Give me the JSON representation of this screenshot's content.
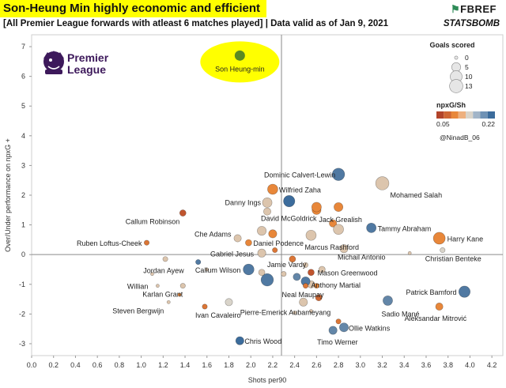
{
  "header": {
    "title": "Son-Heung Min highly economic and efficient",
    "subtitle": "[All Premier League forwards with atleast 6 matches played] | Data valid as of Jan 9, 2021",
    "fbref_prefix": "FB",
    "fbref_suffix": "REF",
    "statsbomb": "STATSBOMB"
  },
  "logo": {
    "line1": "Premier",
    "line2": "League"
  },
  "colors": {
    "highlight": "#ffff00",
    "son_point": "#5a8a23",
    "low": "#b2442a",
    "mid": "#e8873a",
    "neutral": "#d9d4ca",
    "high": "#3c6c9c"
  },
  "legend": {
    "size_title": "Goals scored",
    "size_values": [
      "0",
      "5",
      "10",
      "13"
    ],
    "color_title": "npxG/Sh",
    "color_min": "0.05",
    "color_max": "0.22",
    "credit": "@NinadB_06"
  },
  "chart_data": {
    "type": "scatter",
    "xlabel": "Shots per90",
    "ylabel": "Over/Under performance on npxG +",
    "xlim": [
      0.0,
      4.3
    ],
    "ylim": [
      -3.4,
      7.4
    ],
    "xticks": [
      "0.0",
      "0.2",
      "0.4",
      "0.6",
      "0.8",
      "1.0",
      "1.2",
      "1.4",
      "1.6",
      "1.8",
      "2.0",
      "2.2",
      "2.4",
      "2.6",
      "2.8",
      "3.0",
      "3.2",
      "3.4",
      "3.6",
      "3.8",
      "4.0",
      "4.2"
    ],
    "yticks": [
      "-3",
      "-2",
      "-1",
      "0",
      "1",
      "2",
      "3",
      "4",
      "5",
      "6",
      "7"
    ],
    "reference_lines": {
      "x": 2.28,
      "y": 0
    },
    "highlight_label": "Son Heung-min",
    "points": [
      {
        "name": "Son Heung-min",
        "x": 1.9,
        "y": 6.7,
        "goals": 12,
        "npxg_sh": "highlight",
        "label": true
      },
      {
        "name": "Dominic Calvert-Lewin",
        "x": 2.8,
        "y": 2.7,
        "goals": 11,
        "npxg_sh": 0.21,
        "label": true
      },
      {
        "name": "Mohamed Salah",
        "x": 3.2,
        "y": 2.4,
        "goals": 13,
        "npxg_sh": 0.13,
        "label": true
      },
      {
        "name": "Wilfried Zaha",
        "x": 2.2,
        "y": 2.2,
        "goals": 7,
        "npxg_sh": 0.09,
        "label": true
      },
      {
        "name": "Danny Ings",
        "x": 2.15,
        "y": 1.75,
        "goals": 6,
        "npxg_sh": 0.13,
        "label": true
      },
      {
        "name": "David McGoldrick",
        "x": 2.15,
        "y": 1.45,
        "goals": 3,
        "npxg_sh": 0.13,
        "label": true
      },
      {
        "name": "Jack Grealish",
        "x": 2.6,
        "y": 1.5,
        "goals": 5,
        "npxg_sh": 0.09,
        "label": true
      },
      {
        "name": "Tammy Abraham",
        "x": 3.1,
        "y": 0.9,
        "goals": 6,
        "npxg_sh": 0.21,
        "label": true
      },
      {
        "name": "Callum Robinson",
        "x": 1.38,
        "y": 1.4,
        "goals": 2,
        "npxg_sh": 0.06,
        "label": true
      },
      {
        "name": "Harry Kane",
        "x": 3.72,
        "y": 0.55,
        "goals": 10,
        "npxg_sh": 0.09,
        "label": true
      },
      {
        "name": "Che Adams",
        "x": 1.88,
        "y": 0.55,
        "goals": 3,
        "npxg_sh": 0.13,
        "label": true
      },
      {
        "name": "Daniel Podence",
        "x": 1.98,
        "y": 0.4,
        "goals": 2,
        "npxg_sh": 0.09,
        "label": true
      },
      {
        "name": "Marcus Rashford",
        "x": 2.55,
        "y": 0.65,
        "goals": 7,
        "npxg_sh": 0.13,
        "label": true
      },
      {
        "name": "Ruben Loftus-Cheek",
        "x": 1.05,
        "y": 0.4,
        "goals": 1,
        "npxg_sh": 0.08,
        "label": true
      },
      {
        "name": "Gabriel Jesus",
        "x": 2.1,
        "y": 0.05,
        "goals": 4,
        "npxg_sh": 0.13,
        "label": true
      },
      {
        "name": "Michail Antonio",
        "x": 2.85,
        "y": 0.2,
        "goals": 4,
        "npxg_sh": 0.13,
        "label": true
      },
      {
        "name": "Christian Benteke",
        "x": 3.75,
        "y": 0.15,
        "goals": 1,
        "npxg_sh": 0.14,
        "label": true
      },
      {
        "name": "Jordan Ayew",
        "x": 1.52,
        "y": -0.25,
        "goals": 1,
        "npxg_sh": 0.21,
        "label": true
      },
      {
        "name": "Jamie Vardy",
        "x": 2.15,
        "y": -0.85,
        "goals": 11,
        "npxg_sh": 0.21,
        "label": true
      },
      {
        "name": "Callum Wilson",
        "x": 1.98,
        "y": -0.5,
        "goals": 8,
        "npxg_sh": 0.21,
        "label": true
      },
      {
        "name": "Mason Greenwood",
        "x": 2.55,
        "y": -0.6,
        "goals": 2,
        "npxg_sh": 0.06,
        "label": true
      },
      {
        "name": "Anthony Martial",
        "x": 2.55,
        "y": -1.0,
        "goals": 3,
        "npxg_sh": 0.13,
        "label": true
      },
      {
        "name": "Willian",
        "x": 1.15,
        "y": -1.05,
        "goals": 0,
        "npxg_sh": 0.13,
        "label": true
      },
      {
        "name": "Karlan Grant",
        "x": 1.38,
        "y": -1.05,
        "goals": 1,
        "npxg_sh": 0.13,
        "label": true
      },
      {
        "name": "Patrick Bamford",
        "x": 3.95,
        "y": -1.25,
        "goals": 9,
        "npxg_sh": 0.21,
        "label": true
      },
      {
        "name": "Neal Maupay",
        "x": 2.5,
        "y": -0.9,
        "goals": 5,
        "npxg_sh": 0.21,
        "label": true
      },
      {
        "name": "Steven Bergwijn",
        "x": 1.25,
        "y": -1.6,
        "goals": 0,
        "npxg_sh": 0.13,
        "label": true
      },
      {
        "name": "Sadio Mané",
        "x": 3.25,
        "y": -1.55,
        "goals": 6,
        "npxg_sh": 0.2,
        "label": true
      },
      {
        "name": "Aleksandar Mitrović",
        "x": 3.72,
        "y": -1.75,
        "goals": 3,
        "npxg_sh": 0.09,
        "label": true
      },
      {
        "name": "Ivan Cavaleiro",
        "x": 1.58,
        "y": -1.75,
        "goals": 1,
        "npxg_sh": 0.08,
        "label": true
      },
      {
        "name": "Pierre-Emerick Aubameyang",
        "x": 2.48,
        "y": -1.6,
        "goals": 4,
        "npxg_sh": 0.13,
        "label": true
      },
      {
        "name": "Ollie Watkins",
        "x": 2.85,
        "y": -2.45,
        "goals": 5,
        "npxg_sh": 0.2,
        "label": true
      },
      {
        "name": "Chris Wood",
        "x": 1.9,
        "y": -2.9,
        "goals": 4,
        "npxg_sh": 0.22,
        "label": true
      },
      {
        "name": "Timo Werner",
        "x": 2.75,
        "y": -2.55,
        "goals": 4,
        "npxg_sh": 0.2,
        "label": true
      },
      {
        "x": 2.35,
        "y": 1.8,
        "goals": 9,
        "npxg_sh": 0.22
      },
      {
        "x": 2.6,
        "y": 1.6,
        "goals": 6,
        "npxg_sh": 0.09
      },
      {
        "x": 2.8,
        "y": 1.6,
        "goals": 5,
        "npxg_sh": 0.09
      },
      {
        "x": 2.1,
        "y": 0.8,
        "goals": 5,
        "npxg_sh": 0.13
      },
      {
        "x": 2.2,
        "y": 0.7,
        "goals": 4,
        "npxg_sh": 0.09
      },
      {
        "x": 2.75,
        "y": 1.05,
        "goals": 3,
        "npxg_sh": 0.09
      },
      {
        "x": 2.8,
        "y": 0.85,
        "goals": 7,
        "npxg_sh": 0.13
      },
      {
        "x": 2.22,
        "y": 0.15,
        "goals": 1,
        "npxg_sh": 0.08
      },
      {
        "x": 2.38,
        "y": -0.15,
        "goals": 2,
        "npxg_sh": 0.08
      },
      {
        "x": 2.5,
        "y": -0.35,
        "goals": 1,
        "npxg_sh": 0.13
      },
      {
        "x": 2.65,
        "y": -0.5,
        "goals": 2,
        "npxg_sh": 0.13
      },
      {
        "x": 2.5,
        "y": -1.05,
        "goals": 1,
        "npxg_sh": 0.08
      },
      {
        "x": 2.42,
        "y": -0.75,
        "goals": 3,
        "npxg_sh": 0.2
      },
      {
        "x": 2.1,
        "y": -0.6,
        "goals": 2,
        "npxg_sh": 0.13
      },
      {
        "x": 2.3,
        "y": -0.65,
        "goals": 1,
        "npxg_sh": 0.13
      },
      {
        "x": 2.62,
        "y": -1.45,
        "goals": 2,
        "npxg_sh": 0.07
      },
      {
        "x": 2.6,
        "y": -1.05,
        "goals": 1,
        "npxg_sh": 0.09
      },
      {
        "x": 1.8,
        "y": -1.6,
        "goals": 3,
        "npxg_sh": 0.14
      },
      {
        "x": 1.22,
        "y": -0.15,
        "goals": 1,
        "npxg_sh": 0.13
      },
      {
        "x": 1.35,
        "y": -1.35,
        "goals": 0,
        "npxg_sh": 0.09
      },
      {
        "x": 2.8,
        "y": -2.25,
        "goals": 1,
        "npxg_sh": 0.08
      },
      {
        "x": 1.1,
        "y": -0.65,
        "goals": 0,
        "npxg_sh": 0.13
      },
      {
        "x": 2.55,
        "y": -1.9,
        "goals": 0,
        "npxg_sh": 0.13
      },
      {
        "x": 2.4,
        "y": -1.95,
        "goals": 0,
        "npxg_sh": 0.13
      },
      {
        "x": 1.6,
        "y": -0.5,
        "goals": 0,
        "npxg_sh": 0.13
      },
      {
        "x": 3.45,
        "y": 0.05,
        "goals": 0,
        "npxg_sh": 0.13
      }
    ]
  }
}
